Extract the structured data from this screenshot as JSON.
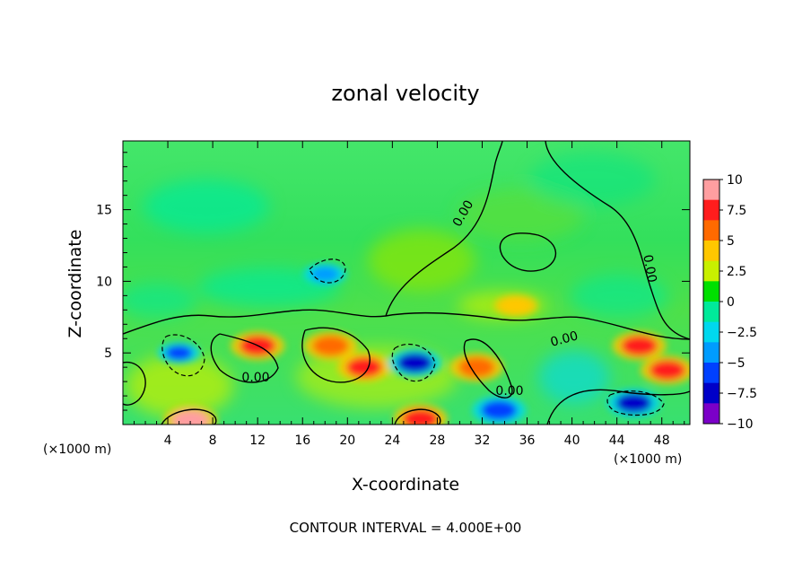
{
  "chart_data": {
    "type": "heatmap",
    "title": "zonal velocity",
    "xlabel": "X-coordinate",
    "ylabel": "Z-coordinate",
    "x_unit": "(×1000 m)",
    "x_ticks": [
      "4",
      "8",
      "12",
      "16",
      "20",
      "24",
      "28",
      "32",
      "36",
      "40",
      "44",
      "48"
    ],
    "y_ticks": [
      "5",
      "10",
      "15"
    ],
    "xlim": [
      0,
      50.5
    ],
    "ylim": [
      0,
      19.8
    ],
    "colorbar": {
      "ticks": [
        "10",
        "7.5",
        "5",
        "2.5",
        "0",
        "−2.5",
        "−5",
        "−7.5",
        "−10"
      ],
      "range": [
        -10,
        10
      ],
      "colors": [
        "#ff9ea0",
        "#ff1d1d",
        "#ff6a00",
        "#ffc700",
        "#c8f000",
        "#00e000",
        "#00ea9a",
        "#00d8ee",
        "#009cff",
        "#0040ff",
        "#0000c8",
        "#7b00c8"
      ]
    },
    "contour_labels": [
      "0.00",
      "0.00",
      "0.00",
      "0.00",
      "0.00"
    ],
    "contour_interval_text": "CONTOUR INTERVAL = 4.000E+00",
    "features": [
      {
        "x": 6,
        "z": 0.3,
        "value": 10
      },
      {
        "x": 12,
        "z": 5.5,
        "value": 8
      },
      {
        "x": 18.5,
        "z": 5.5,
        "value": 7
      },
      {
        "x": 21.5,
        "z": 4,
        "value": 9
      },
      {
        "x": 26,
        "z": 4.3,
        "value": -8
      },
      {
        "x": 26.5,
        "z": 0.4,
        "value": 8
      },
      {
        "x": 31.5,
        "z": 4,
        "value": 7
      },
      {
        "x": 5,
        "z": 5,
        "value": -6
      },
      {
        "x": 18,
        "z": 10.5,
        "value": -4
      },
      {
        "x": 45.5,
        "z": 1.5,
        "value": -8
      },
      {
        "x": 46,
        "z": 5.5,
        "value": 8
      },
      {
        "x": 48.5,
        "z": 3.8,
        "value": 8
      },
      {
        "x": 35,
        "z": 8.3,
        "value": 5
      },
      {
        "x": 33.5,
        "z": 1,
        "value": -7
      }
    ]
  }
}
